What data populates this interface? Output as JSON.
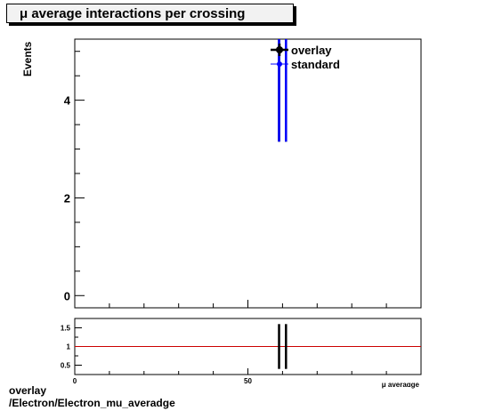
{
  "title": "μ average interactions per crossing",
  "ylabel": "Events",
  "footer": {
    "line1": "overlay",
    "line2": "/Electron/Electron_mu_averadge"
  },
  "colors": {
    "overlay": "#000000",
    "standard": "#0000ff",
    "ratio_line": "#cc0000"
  },
  "chart_data": [
    {
      "type": "scatter",
      "ylabel": "Events",
      "xlim": [
        0,
        100
      ],
      "ylim": [
        -0.25,
        5.25
      ],
      "y_ticks": [
        0,
        2,
        4
      ],
      "legend_position": "top-right",
      "series": [
        {
          "name": "overlay",
          "points": [
            {
              "x": 59,
              "y": 5.5,
              "yerr": 2.35
            },
            {
              "x": 61,
              "y": 5.5,
              "yerr": 2.35
            }
          ]
        },
        {
          "name": "standard",
          "points": [
            {
              "x": 59,
              "y": 5.5,
              "yerr": 2.35
            },
            {
              "x": 61,
              "y": 5.5,
              "yerr": 2.35
            }
          ]
        }
      ]
    },
    {
      "type": "scatter",
      "xlabel": "μ averadge",
      "xlim": [
        0,
        100
      ],
      "ylim": [
        0.25,
        1.75
      ],
      "x_ticks": [
        0,
        50
      ],
      "y_ticks": [
        0.5,
        1,
        1.5
      ],
      "reference_line": 1,
      "series": [
        {
          "points": [
            {
              "x": 59,
              "y": 1,
              "yerr": 0.6
            },
            {
              "x": 61,
              "y": 1,
              "yerr": 0.6
            }
          ]
        }
      ]
    }
  ]
}
